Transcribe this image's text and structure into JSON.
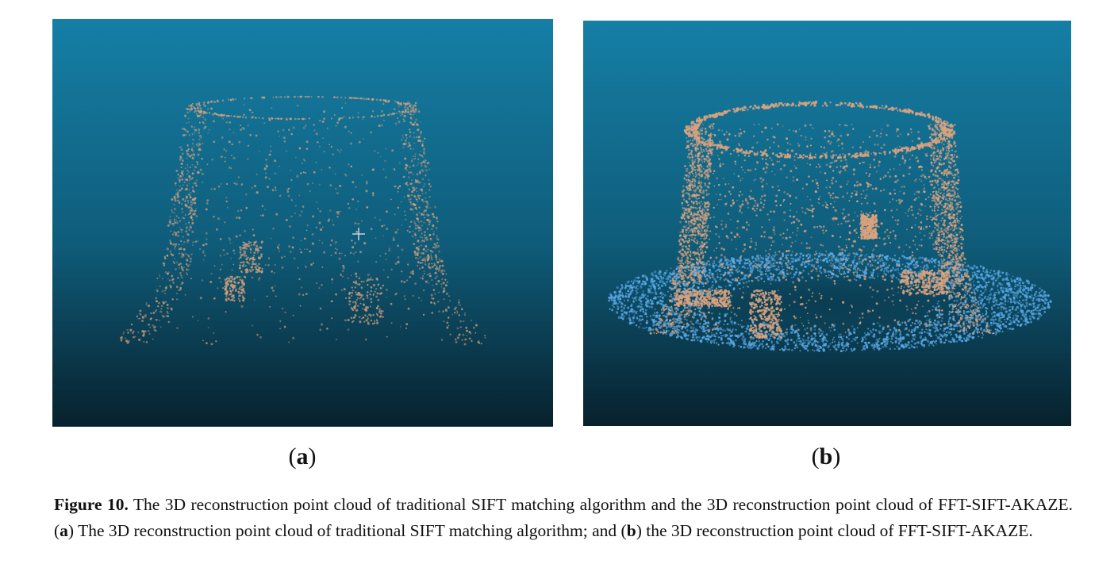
{
  "figure": {
    "panels": [
      {
        "id": "a",
        "label": "a",
        "content": "3D reconstruction point cloud of traditional SIFT matching algorithm"
      },
      {
        "id": "b",
        "label": "b",
        "content": "3D reconstruction point cloud of FFT-SIFT-AKAZE"
      }
    ],
    "colors": {
      "background_top": "#157fa6",
      "background_bottom": "#07212d",
      "points_stump": "#d9a27e",
      "points_ground": "#5aa8e6",
      "crosshair": "#d8e6ee"
    },
    "caption": {
      "figure_number": "Figure 10.",
      "text_1": " The 3D reconstruction point cloud of traditional SIFT matching algorithm and the 3D reconstruction point cloud of FFT-SIFT-AKAZE. (",
      "ref_a": "a",
      "text_2": ") The 3D reconstruction point cloud of traditional SIFT matching algorithm; and (",
      "ref_b": "b",
      "text_3": ") the 3D reconstruction point cloud of FFT-SIFT-AKAZE."
    }
  }
}
